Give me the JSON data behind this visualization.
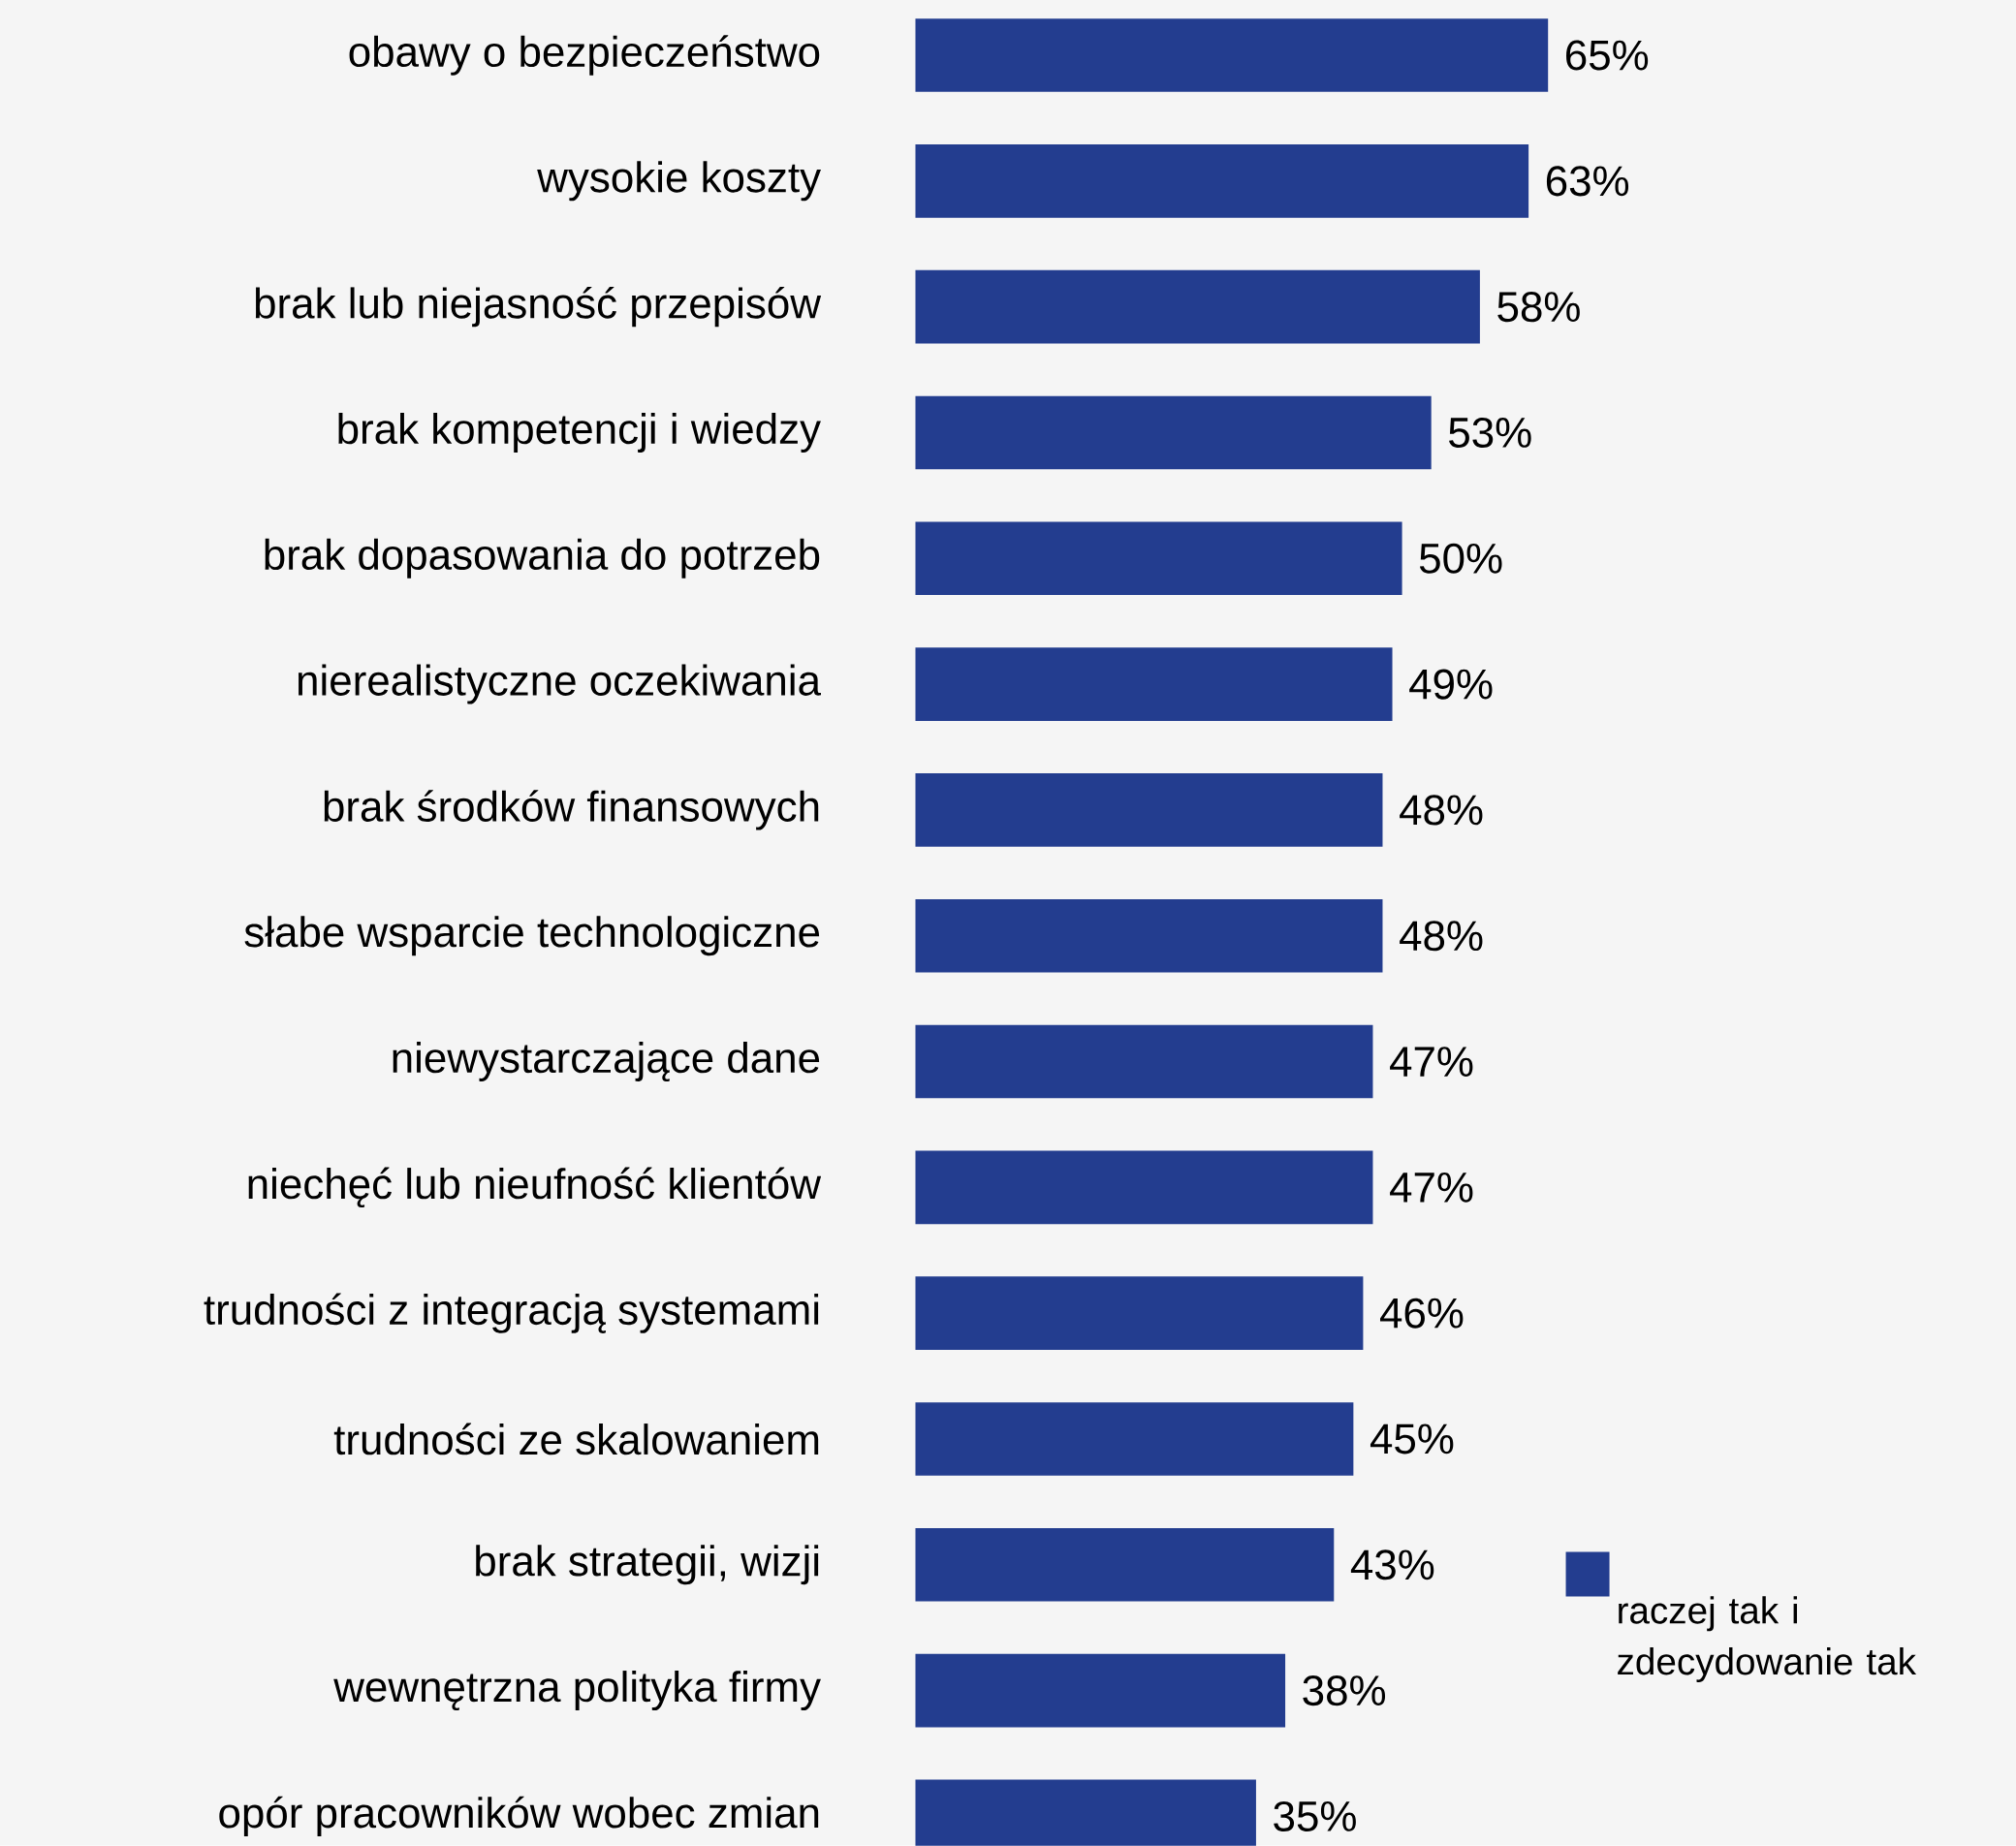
{
  "chart_data": {
    "type": "bar",
    "orientation": "horizontal",
    "categories": [
      "obawy o bezpieczeństwo",
      "wysokie koszty",
      "brak lub niejasność przepisów",
      "brak kompetencji i wiedzy",
      "brak dopasowania do potrzeb",
      "nierealistyczne oczekiwania",
      "brak środków finansowych",
      "słabe wsparcie technologiczne",
      "niewystarczające dane",
      "niechęć lub nieufność klientów",
      "trudności z integracją systemami",
      "trudności ze skalowaniem",
      "brak strategii, wizji",
      "wewnętrzna polityka firmy",
      "opór pracowników wobec zmian"
    ],
    "series": [
      {
        "name": "raczej tak i zdecydowanie tak",
        "color": "#233d8f",
        "values": [
          65,
          63,
          58,
          53,
          50,
          49,
          48,
          48,
          47,
          47,
          46,
          45,
          43,
          38,
          35
        ],
        "value_labels": [
          "65%",
          "63%",
          "58%",
          "53%",
          "50%",
          "49%",
          "48%",
          "48%",
          "47%",
          "47%",
          "46%",
          "45%",
          "43%",
          "38%",
          "35%"
        ]
      }
    ],
    "legend": "bottom right"
  }
}
